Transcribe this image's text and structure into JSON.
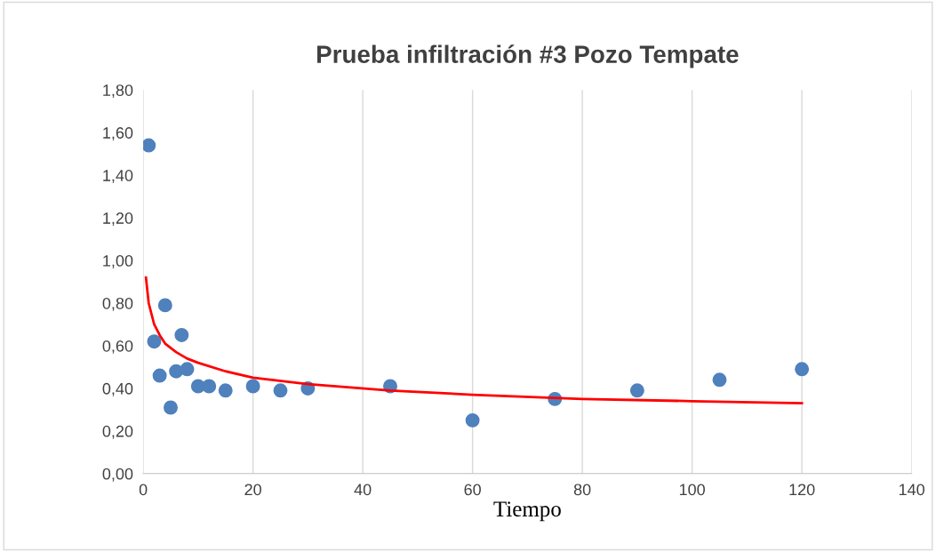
{
  "chart_data": {
    "type": "scatter",
    "title": "Prueba infiltración #3 Pozo Tempate",
    "xlabel": "Tiempo",
    "series": [
      {
        "type": "scatter",
        "color": "#4f81bd",
        "marker": "circle",
        "x": [
          1,
          2,
          3,
          4,
          5,
          6,
          7,
          8,
          10,
          12,
          15,
          20,
          25,
          30,
          45,
          60,
          75,
          90,
          105,
          120
        ],
        "values": [
          1.54,
          0.62,
          0.46,
          0.79,
          0.31,
          0.48,
          0.65,
          0.49,
          0.41,
          0.41,
          0.39,
          0.41,
          0.39,
          0.4,
          0.41,
          0.25,
          0.35,
          0.39,
          0.44,
          0.49
        ]
      },
      {
        "type": "line",
        "color": "#ff0000",
        "marker": "none",
        "x": [
          0.5,
          1,
          2,
          3,
          4,
          6,
          8,
          10,
          15,
          20,
          30,
          45,
          60,
          80,
          100,
          120
        ],
        "values": [
          0.92,
          0.8,
          0.7,
          0.65,
          0.61,
          0.57,
          0.54,
          0.52,
          0.48,
          0.45,
          0.42,
          0.39,
          0.37,
          0.35,
          0.34,
          0.33
        ]
      }
    ],
    "xlim": [
      0,
      140
    ],
    "xticks": [
      0,
      20,
      40,
      60,
      80,
      100,
      120,
      140
    ],
    "ylim": [
      0,
      1.8
    ],
    "yticks": [
      {
        "value": 0,
        "label": "0,00"
      },
      {
        "value": 0.2,
        "label": "0,20"
      },
      {
        "value": 0.4,
        "label": "0,40"
      },
      {
        "value": 0.6,
        "label": "0,60"
      },
      {
        "value": 0.8,
        "label": "0,80"
      },
      {
        "value": 1.0,
        "label": "1,00"
      },
      {
        "value": 1.2,
        "label": "1,20"
      },
      {
        "value": 1.4,
        "label": "1,40"
      },
      {
        "value": 1.6,
        "label": "1,60"
      },
      {
        "value": 1.8,
        "label": "1,80"
      }
    ],
    "grid": "x"
  }
}
